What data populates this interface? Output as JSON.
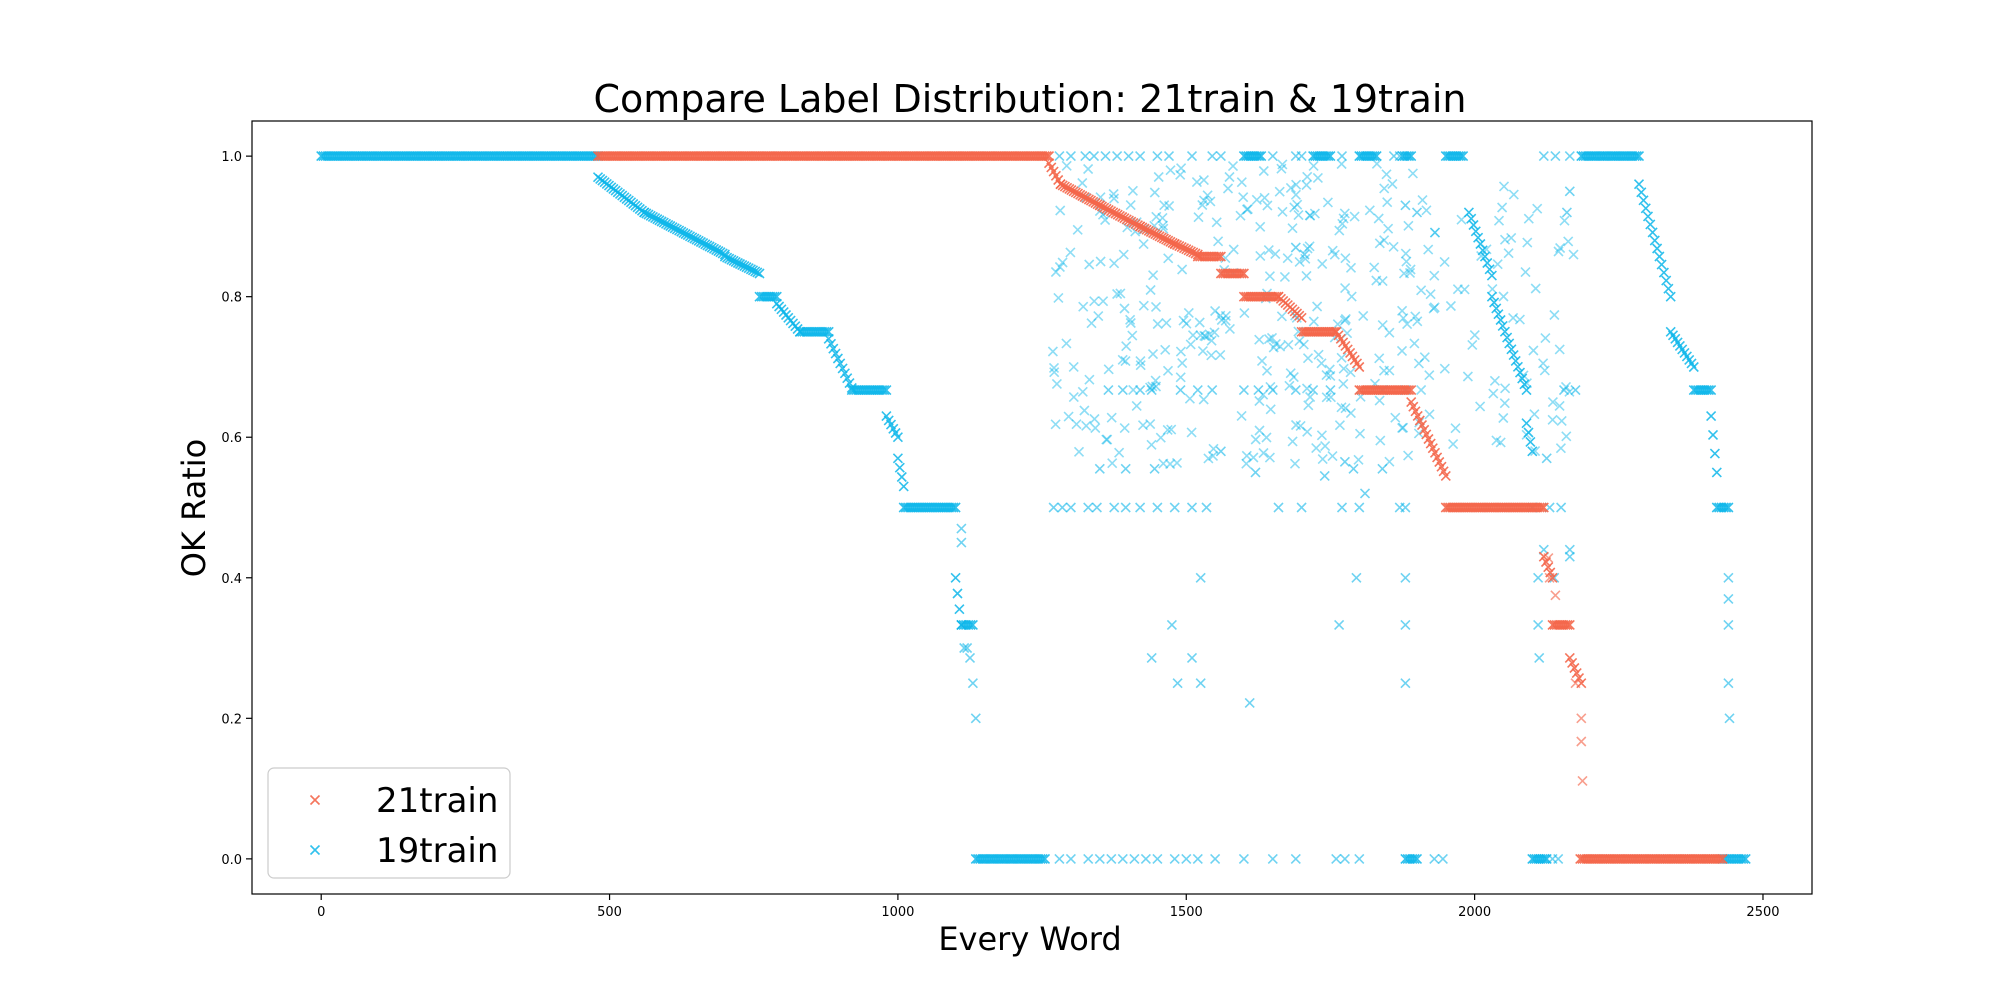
{
  "chart_data": {
    "type": "scatter",
    "title": "Compare Label Distribution: 21train & 19train",
    "xlabel": "Every Word",
    "ylabel": "OK Ratio",
    "xlim": [
      -120,
      2585
    ],
    "ylim": [
      -0.05,
      1.05
    ],
    "xticks": [
      0,
      500,
      1000,
      1500,
      2000,
      2500
    ],
    "yticks": [
      0.0,
      0.2,
      0.4,
      0.6,
      0.8,
      1.0
    ],
    "grid": false,
    "legend_position": "lower-left",
    "marker": "x",
    "series": [
      {
        "name": "21train",
        "color": "#f4664a",
        "alpha": 0.9,
        "segments": [
          {
            "x0": 480,
            "x1": 1262,
            "y0": 1.0,
            "y1": 1.0
          },
          {
            "x0": 1262,
            "x1": 1282,
            "y0": 0.99,
            "y1": 0.96
          },
          {
            "x0": 1282,
            "x1": 1350,
            "y0": 0.96,
            "y1": 0.93
          },
          {
            "x0": 1350,
            "x1": 1420,
            "y0": 0.93,
            "y1": 0.9
          },
          {
            "x0": 1420,
            "x1": 1480,
            "y0": 0.9,
            "y1": 0.875
          },
          {
            "x0": 1480,
            "x1": 1520,
            "y0": 0.875,
            "y1": 0.86
          },
          {
            "x0": 1520,
            "x1": 1560,
            "y0": 0.857,
            "y1": 0.857
          },
          {
            "x0": 1560,
            "x1": 1600,
            "y0": 0.833,
            "y1": 0.833
          },
          {
            "x0": 1600,
            "x1": 1660,
            "y0": 0.8,
            "y1": 0.8
          },
          {
            "x0": 1660,
            "x1": 1700,
            "y0": 0.8,
            "y1": 0.77
          },
          {
            "x0": 1700,
            "x1": 1760,
            "y0": 0.75,
            "y1": 0.75
          },
          {
            "x0": 1760,
            "x1": 1800,
            "y0": 0.75,
            "y1": 0.7
          },
          {
            "x0": 1800,
            "x1": 1890,
            "y0": 0.667,
            "y1": 0.667
          },
          {
            "x0": 1890,
            "x1": 1950,
            "y0": 0.65,
            "y1": 0.545
          },
          {
            "x0": 1950,
            "x1": 2120,
            "y0": 0.5,
            "y1": 0.5
          },
          {
            "x0": 2120,
            "x1": 2135,
            "y0": 0.43,
            "y1": 0.4
          },
          {
            "x0": 2135,
            "x1": 2165,
            "y0": 0.333,
            "y1": 0.333
          },
          {
            "x0": 2165,
            "x1": 2185,
            "y0": 0.286,
            "y1": 0.25
          },
          {
            "x0": 2183,
            "x1": 2430,
            "y0": 0.0,
            "y1": 0.0
          }
        ],
        "points": [
          [
            2140,
            0.375
          ],
          [
            2175,
            0.25
          ],
          [
            2185,
            0.2
          ],
          [
            2185,
            0.167
          ],
          [
            2187,
            0.111
          ],
          [
            2128,
            0.428
          ],
          [
            2130,
            0.4
          ]
        ]
      },
      {
        "name": "19train",
        "color": "#0db6ea",
        "alpha": 0.85,
        "segments": [
          {
            "x0": 0,
            "x1": 480,
            "y0": 1.0,
            "y1": 1.0
          },
          {
            "x0": 480,
            "x1": 560,
            "y0": 0.97,
            "y1": 0.92
          },
          {
            "x0": 560,
            "x1": 700,
            "y0": 0.92,
            "y1": 0.86
          },
          {
            "x0": 700,
            "x1": 760,
            "y0": 0.857,
            "y1": 0.833
          },
          {
            "x0": 760,
            "x1": 790,
            "y0": 0.8,
            "y1": 0.8
          },
          {
            "x0": 790,
            "x1": 830,
            "y0": 0.79,
            "y1": 0.75
          },
          {
            "x0": 830,
            "x1": 880,
            "y0": 0.75,
            "y1": 0.75
          },
          {
            "x0": 880,
            "x1": 920,
            "y0": 0.74,
            "y1": 0.67
          },
          {
            "x0": 920,
            "x1": 980,
            "y0": 0.667,
            "y1": 0.667
          },
          {
            "x0": 980,
            "x1": 1000,
            "y0": 0.63,
            "y1": 0.6
          },
          {
            "x0": 1000,
            "x1": 1010,
            "y0": 0.57,
            "y1": 0.53
          },
          {
            "x0": 1010,
            "x1": 1100,
            "y0": 0.5,
            "y1": 0.5
          },
          {
            "x0": 1100,
            "x1": 1110,
            "y0": 0.4,
            "y1": 0.333
          },
          {
            "x0": 1110,
            "x1": 1130,
            "y0": 0.333,
            "y1": 0.333
          },
          {
            "x0": 1135,
            "x1": 1255,
            "y0": 0.0,
            "y1": 0.0
          },
          {
            "x0": 1990,
            "x1": 2030,
            "y0": 0.92,
            "y1": 0.83
          },
          {
            "x0": 2030,
            "x1": 2090,
            "y0": 0.8,
            "y1": 0.667
          },
          {
            "x0": 2090,
            "x1": 2100,
            "y0": 0.62,
            "y1": 0.58
          },
          {
            "x0": 2185,
            "x1": 2285,
            "y0": 1.0,
            "y1": 1.0
          },
          {
            "x0": 2285,
            "x1": 2340,
            "y0": 0.96,
            "y1": 0.8
          },
          {
            "x0": 2340,
            "x1": 2380,
            "y0": 0.75,
            "y1": 0.7
          },
          {
            "x0": 2380,
            "x1": 2410,
            "y0": 0.667,
            "y1": 0.667
          },
          {
            "x0": 2410,
            "x1": 2420,
            "y0": 0.63,
            "y1": 0.55
          },
          {
            "x0": 2420,
            "x1": 2440,
            "y0": 0.5,
            "y1": 0.5
          },
          {
            "x0": 2430,
            "x1": 2470,
            "y0": 0.0,
            "y1": 0.0
          },
          {
            "x0": 1875,
            "x1": 1890,
            "y0": 1.0,
            "y1": 1.0
          },
          {
            "x0": 1950,
            "x1": 1980,
            "y0": 1.0,
            "y1": 1.0
          },
          {
            "x0": 1720,
            "x1": 1750,
            "y0": 1.0,
            "y1": 1.0
          },
          {
            "x0": 1800,
            "x1": 1830,
            "y0": 1.0,
            "y1": 1.0
          },
          {
            "x0": 1600,
            "x1": 1630,
            "y0": 1.0,
            "y1": 1.0
          },
          {
            "x0": 1880,
            "x1": 1900,
            "y0": 0.0,
            "y1": 0.0
          },
          {
            "x0": 2100,
            "x1": 2125,
            "y0": 0.0,
            "y1": 0.0
          }
        ],
        "cloud": [
          {
            "x0": 1265,
            "x1": 1900,
            "y0": 0.56,
            "y1": 0.99,
            "n": 320
          },
          {
            "x0": 1900,
            "x1": 2180,
            "y0": 0.58,
            "y1": 0.97,
            "n": 80
          }
        ],
        "points": [
          [
            1270,
            0.5
          ],
          [
            1285,
            0.5
          ],
          [
            1300,
            0.5
          ],
          [
            1330,
            0.5
          ],
          [
            1345,
            0.5
          ],
          [
            1375,
            0.5
          ],
          [
            1395,
            0.5
          ],
          [
            1420,
            0.5
          ],
          [
            1450,
            0.5
          ],
          [
            1480,
            0.5
          ],
          [
            1510,
            0.5
          ],
          [
            1535,
            0.5
          ],
          [
            1660,
            0.5
          ],
          [
            1700,
            0.5
          ],
          [
            1770,
            0.5
          ],
          [
            1800,
            0.5
          ],
          [
            1870,
            0.5
          ],
          [
            1880,
            0.5
          ],
          [
            2100,
            0.5
          ],
          [
            2130,
            0.5
          ],
          [
            2150,
            0.5
          ],
          [
            1280,
            0.0
          ],
          [
            1300,
            0.0
          ],
          [
            1330,
            0.0
          ],
          [
            1350,
            0.0
          ],
          [
            1370,
            0.0
          ],
          [
            1390,
            0.0
          ],
          [
            1410,
            0.0
          ],
          [
            1430,
            0.0
          ],
          [
            1450,
            0.0
          ],
          [
            1480,
            0.0
          ],
          [
            1500,
            0.0
          ],
          [
            1520,
            0.0
          ],
          [
            1550,
            0.0
          ],
          [
            1600,
            0.0
          ],
          [
            1650,
            0.0
          ],
          [
            1690,
            0.0
          ],
          [
            1760,
            0.0
          ],
          [
            1775,
            0.0
          ],
          [
            1800,
            0.0
          ],
          [
            1930,
            0.0
          ],
          [
            1945,
            0.0
          ],
          [
            2135,
            0.0
          ],
          [
            2145,
            0.0
          ],
          [
            1280,
            1.0
          ],
          [
            1300,
            1.0
          ],
          [
            1325,
            1.0
          ],
          [
            1340,
            1.0
          ],
          [
            1360,
            1.0
          ],
          [
            1380,
            1.0
          ],
          [
            1400,
            1.0
          ],
          [
            1420,
            1.0
          ],
          [
            1450,
            1.0
          ],
          [
            1470,
            1.0
          ],
          [
            1510,
            1.0
          ],
          [
            1545,
            1.0
          ],
          [
            1560,
            1.0
          ],
          [
            1650,
            1.0
          ],
          [
            1690,
            1.0
          ],
          [
            1700,
            1.0
          ],
          [
            1770,
            1.0
          ],
          [
            1860,
            1.0
          ],
          [
            1870,
            1.0
          ],
          [
            2120,
            1.0
          ],
          [
            2140,
            1.0
          ],
          [
            2165,
            1.0
          ],
          [
            1365,
            0.667
          ],
          [
            1390,
            0.667
          ],
          [
            1420,
            0.667
          ],
          [
            1440,
            0.667
          ],
          [
            1490,
            0.667
          ],
          [
            1520,
            0.667
          ],
          [
            1545,
            0.667
          ],
          [
            1600,
            0.667
          ],
          [
            1625,
            0.667
          ],
          [
            1650,
            0.667
          ],
          [
            1690,
            0.667
          ],
          [
            1720,
            0.667
          ],
          [
            1750,
            0.667
          ],
          [
            1840,
            0.667
          ],
          [
            1880,
            0.667
          ],
          [
            2155,
            0.667
          ],
          [
            2175,
            0.667
          ],
          [
            1350,
            0.555
          ],
          [
            1395,
            0.555
          ],
          [
            1445,
            0.555
          ],
          [
            1790,
            0.555
          ],
          [
            1840,
            0.555
          ],
          [
            1775,
            0.565
          ],
          [
            1740,
            0.545
          ],
          [
            1810,
            0.52
          ],
          [
            1560,
            0.58
          ],
          [
            1620,
            0.55
          ],
          [
            1525,
            0.4
          ],
          [
            1795,
            0.4
          ],
          [
            1880,
            0.4
          ],
          [
            2120,
            0.44
          ],
          [
            2165,
            0.43
          ],
          [
            2165,
            0.44
          ],
          [
            2110,
            0.4
          ],
          [
            1475,
            0.333
          ],
          [
            1765,
            0.333
          ],
          [
            1880,
            0.333
          ],
          [
            2110,
            0.333
          ],
          [
            2138,
            0.4
          ],
          [
            1440,
            0.286
          ],
          [
            1510,
            0.286
          ],
          [
            1525,
            0.25
          ],
          [
            1485,
            0.25
          ],
          [
            1880,
            0.25
          ],
          [
            1610,
            0.222
          ],
          [
            2112,
            0.286
          ],
          [
            2125,
            0.57
          ],
          [
            2165,
            0.95
          ],
          [
            2160,
            0.92
          ],
          [
            1900,
            0.92
          ],
          [
            1880,
            0.93
          ],
          [
            1690,
            0.87
          ],
          [
            1705,
            0.86
          ],
          [
            2440,
            0.4
          ],
          [
            2440,
            0.37
          ],
          [
            2440,
            0.333
          ],
          [
            2440,
            0.25
          ],
          [
            2442,
            0.2
          ],
          [
            1110,
            0.45
          ],
          [
            1110,
            0.47
          ],
          [
            1115,
            0.3
          ],
          [
            1120,
            0.3
          ],
          [
            1125,
            0.286
          ],
          [
            1130,
            0.25
          ],
          [
            1135,
            0.2
          ]
        ]
      }
    ]
  }
}
